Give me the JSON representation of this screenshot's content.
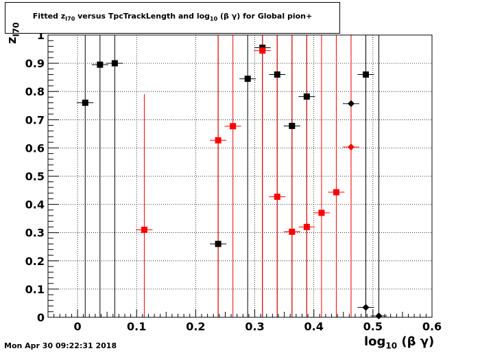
{
  "title": {
    "prefix": "Fitted  z",
    "sub": "I70",
    "suffix": "  versus TpcTrackLength and log",
    "sub2": "10",
    "tail": " (β γ) for Global pion+"
  },
  "x_title": {
    "base": "log",
    "sub": "10",
    "tail": " (β γ)"
  },
  "y_title": {
    "base": "z",
    "sub": "I70"
  },
  "timestamp": "Mon Apr 30 09:22:31 2018",
  "chart_data": {
    "type": "scatter",
    "title": "Fitted z_I70 versus TpcTrackLength and log10 (β γ) for Global pion+",
    "xlabel": "log10 (β γ)",
    "ylabel": "z_I70",
    "xlim": [
      -0.05,
      0.6
    ],
    "ylim": [
      0,
      1
    ],
    "x_ticks": [
      "0",
      "0.1",
      "0.2",
      "0.3",
      "0.4",
      "0.5",
      "0.6"
    ],
    "y_ticks": [
      "0",
      "0.1",
      "0.2",
      "0.3",
      "0.4",
      "0.5",
      "0.6",
      "0.7",
      "0.8",
      "0.9",
      "1"
    ],
    "grid": true,
    "colors": {
      "black": "#000000",
      "red": "#ff0000"
    },
    "series": [
      {
        "color": "#000000",
        "marker": "square",
        "points": [
          {
            "x": 0.013,
            "y": 0.76,
            "yerr_top": 1.0
          },
          {
            "x": 0.038,
            "y": 0.895,
            "yerr_top": 1.0
          },
          {
            "x": 0.063,
            "y": 0.9,
            "yerr_top": 1.0
          },
          {
            "x": 0.238,
            "y": 0.26,
            "yerr_top": 1.0
          },
          {
            "x": 0.288,
            "y": 0.845,
            "yerr_top": 1.0
          },
          {
            "x": 0.313,
            "y": 0.955,
            "yerr_top": 1.0
          },
          {
            "x": 0.338,
            "y": 0.86,
            "yerr_top": 1.0
          },
          {
            "x": 0.363,
            "y": 0.678,
            "yerr_top": 1.0
          },
          {
            "x": 0.388,
            "y": 0.782,
            "yerr_top": 1.0
          },
          {
            "x": 0.488,
            "y": 0.86,
            "yerr_top": 1.0
          }
        ]
      },
      {
        "color": "#ff0000",
        "marker": "square",
        "points": [
          {
            "x": 0.113,
            "y": 0.31,
            "yerr_top": 0.79
          },
          {
            "x": 0.238,
            "y": 0.627,
            "yerr_top": 1.0
          },
          {
            "x": 0.263,
            "y": 0.677,
            "yerr_top": 1.0
          },
          {
            "x": 0.313,
            "y": 0.945,
            "yerr_top": 1.0
          },
          {
            "x": 0.338,
            "y": 0.427,
            "yerr_top": 1.0
          },
          {
            "x": 0.363,
            "y": 0.303,
            "yerr_top": 1.0
          },
          {
            "x": 0.388,
            "y": 0.32,
            "yerr_top": 1.0
          },
          {
            "x": 0.413,
            "y": 0.37,
            "yerr_top": 1.0
          },
          {
            "x": 0.438,
            "y": 0.443,
            "yerr_top": 1.0
          }
        ]
      },
      {
        "color": "#000000",
        "marker": "diamond",
        "points": [
          {
            "x": 0.463,
            "y": 0.757,
            "yerr_top": 1.0
          },
          {
            "x": 0.488,
            "y": 0.035,
            "yerr_top": 1.0
          },
          {
            "x": 0.51,
            "y": 0.005,
            "yerr_top": 1.0
          }
        ]
      },
      {
        "color": "#ff0000",
        "marker": "diamond",
        "points": [
          {
            "x": 0.463,
            "y": 0.603,
            "yerr_top": 1.0
          }
        ]
      }
    ]
  }
}
